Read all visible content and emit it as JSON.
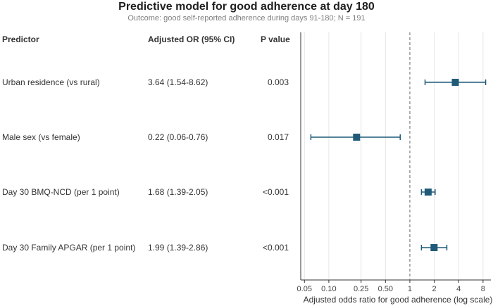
{
  "header": {
    "title": "Predictive model for good adherence at day 180",
    "subtitle": "Outcome: good self-reported adherence during days 91-180; N = 191"
  },
  "table": {
    "columns": [
      "Predictor",
      "Adjusted OR (95% CI)",
      "P value"
    ]
  },
  "chart_data": {
    "type": "forest",
    "x_scale": "log",
    "xlim": [
      0.045,
      10
    ],
    "reference_line": 1,
    "xlabel": "Adjusted odds ratio for good adherence (log scale)",
    "xticks": [
      0.05,
      0.1,
      0.25,
      0.5,
      1,
      2,
      4,
      8
    ],
    "xtick_labels": [
      "0.05",
      "0.10",
      "0.25",
      "0.50",
      "1",
      "2",
      "4",
      "8"
    ],
    "rows": [
      {
        "predictor": "Urban residence (vs rural)",
        "or": 3.64,
        "lo": 1.54,
        "hi": 8.62,
        "or_text": "3.64 (1.54-8.62)",
        "p": "0.003"
      },
      {
        "predictor": "Male sex (vs female)",
        "or": 0.22,
        "lo": 0.06,
        "hi": 0.76,
        "or_text": "0.22 (0.06-0.76)",
        "p": "0.017"
      },
      {
        "predictor": "Day 30 BMQ-NCD (per 1 point)",
        "or": 1.68,
        "lo": 1.39,
        "hi": 2.05,
        "or_text": "1.68 (1.39-2.05)",
        "p": "<0.001"
      },
      {
        "predictor": "Day 30 Family APGAR (per 1 point)",
        "or": 1.99,
        "lo": 1.39,
        "hi": 2.86,
        "or_text": "1.99 (1.39-2.86)",
        "p": "<0.001"
      }
    ],
    "marker_color": "#1f5a78",
    "grid": true
  }
}
